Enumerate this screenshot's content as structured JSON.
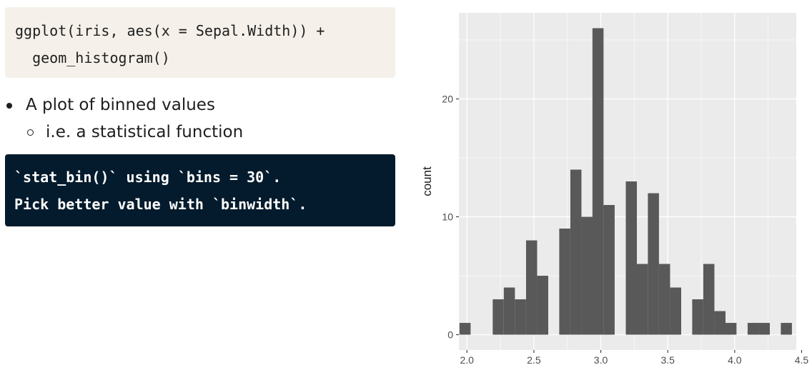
{
  "code": {
    "lines": [
      "ggplot(iris, aes(x = Sepal.Width)) +",
      "  geom_histogram()"
    ]
  },
  "bullets": {
    "main": "A plot of binned values",
    "sub": "i.e. a statistical function"
  },
  "output": {
    "lines": [
      "`stat_bin()` using `bins = 30`.",
      "Pick better value with `binwidth`."
    ]
  },
  "colors": {
    "panel": "#ebebeb",
    "bar": "#595959",
    "code_bg": "#f5f1ea",
    "output_bg": "#041b2d"
  },
  "chart_data": {
    "type": "bar",
    "ylabel": "count",
    "xlabel": "",
    "y_ticks": [
      0,
      10,
      20
    ],
    "x_ticks": [
      "2.0",
      "2.5",
      "3.0",
      "3.5",
      "4.0",
      "4.5"
    ],
    "x_tick_values": [
      2.0,
      2.5,
      3.0,
      3.5,
      4.0,
      4.5
    ],
    "xlim": [
      1.94,
      4.46
    ],
    "ylim": [
      -1.3,
      27.3
    ],
    "binwidth": 0.0828,
    "bins": [
      {
        "x": 1.986,
        "count": 1
      },
      {
        "x": 2.069,
        "count": 0
      },
      {
        "x": 2.152,
        "count": 0
      },
      {
        "x": 2.234,
        "count": 3
      },
      {
        "x": 2.317,
        "count": 4
      },
      {
        "x": 2.4,
        "count": 3
      },
      {
        "x": 2.483,
        "count": 8
      },
      {
        "x": 2.566,
        "count": 5
      },
      {
        "x": 2.648,
        "count": 0
      },
      {
        "x": 2.731,
        "count": 9
      },
      {
        "x": 2.814,
        "count": 14
      },
      {
        "x": 2.897,
        "count": 10
      },
      {
        "x": 2.979,
        "count": 26
      },
      {
        "x": 3.062,
        "count": 11
      },
      {
        "x": 3.145,
        "count": 0
      },
      {
        "x": 3.228,
        "count": 13
      },
      {
        "x": 3.31,
        "count": 6
      },
      {
        "x": 3.393,
        "count": 12
      },
      {
        "x": 3.476,
        "count": 6
      },
      {
        "x": 3.559,
        "count": 4
      },
      {
        "x": 3.641,
        "count": 0
      },
      {
        "x": 3.724,
        "count": 3
      },
      {
        "x": 3.807,
        "count": 6
      },
      {
        "x": 3.89,
        "count": 2
      },
      {
        "x": 3.972,
        "count": 1
      },
      {
        "x": 4.055,
        "count": 0
      },
      {
        "x": 4.138,
        "count": 1
      },
      {
        "x": 4.221,
        "count": 1
      },
      {
        "x": 4.303,
        "count": 0
      },
      {
        "x": 4.386,
        "count": 1
      }
    ]
  }
}
